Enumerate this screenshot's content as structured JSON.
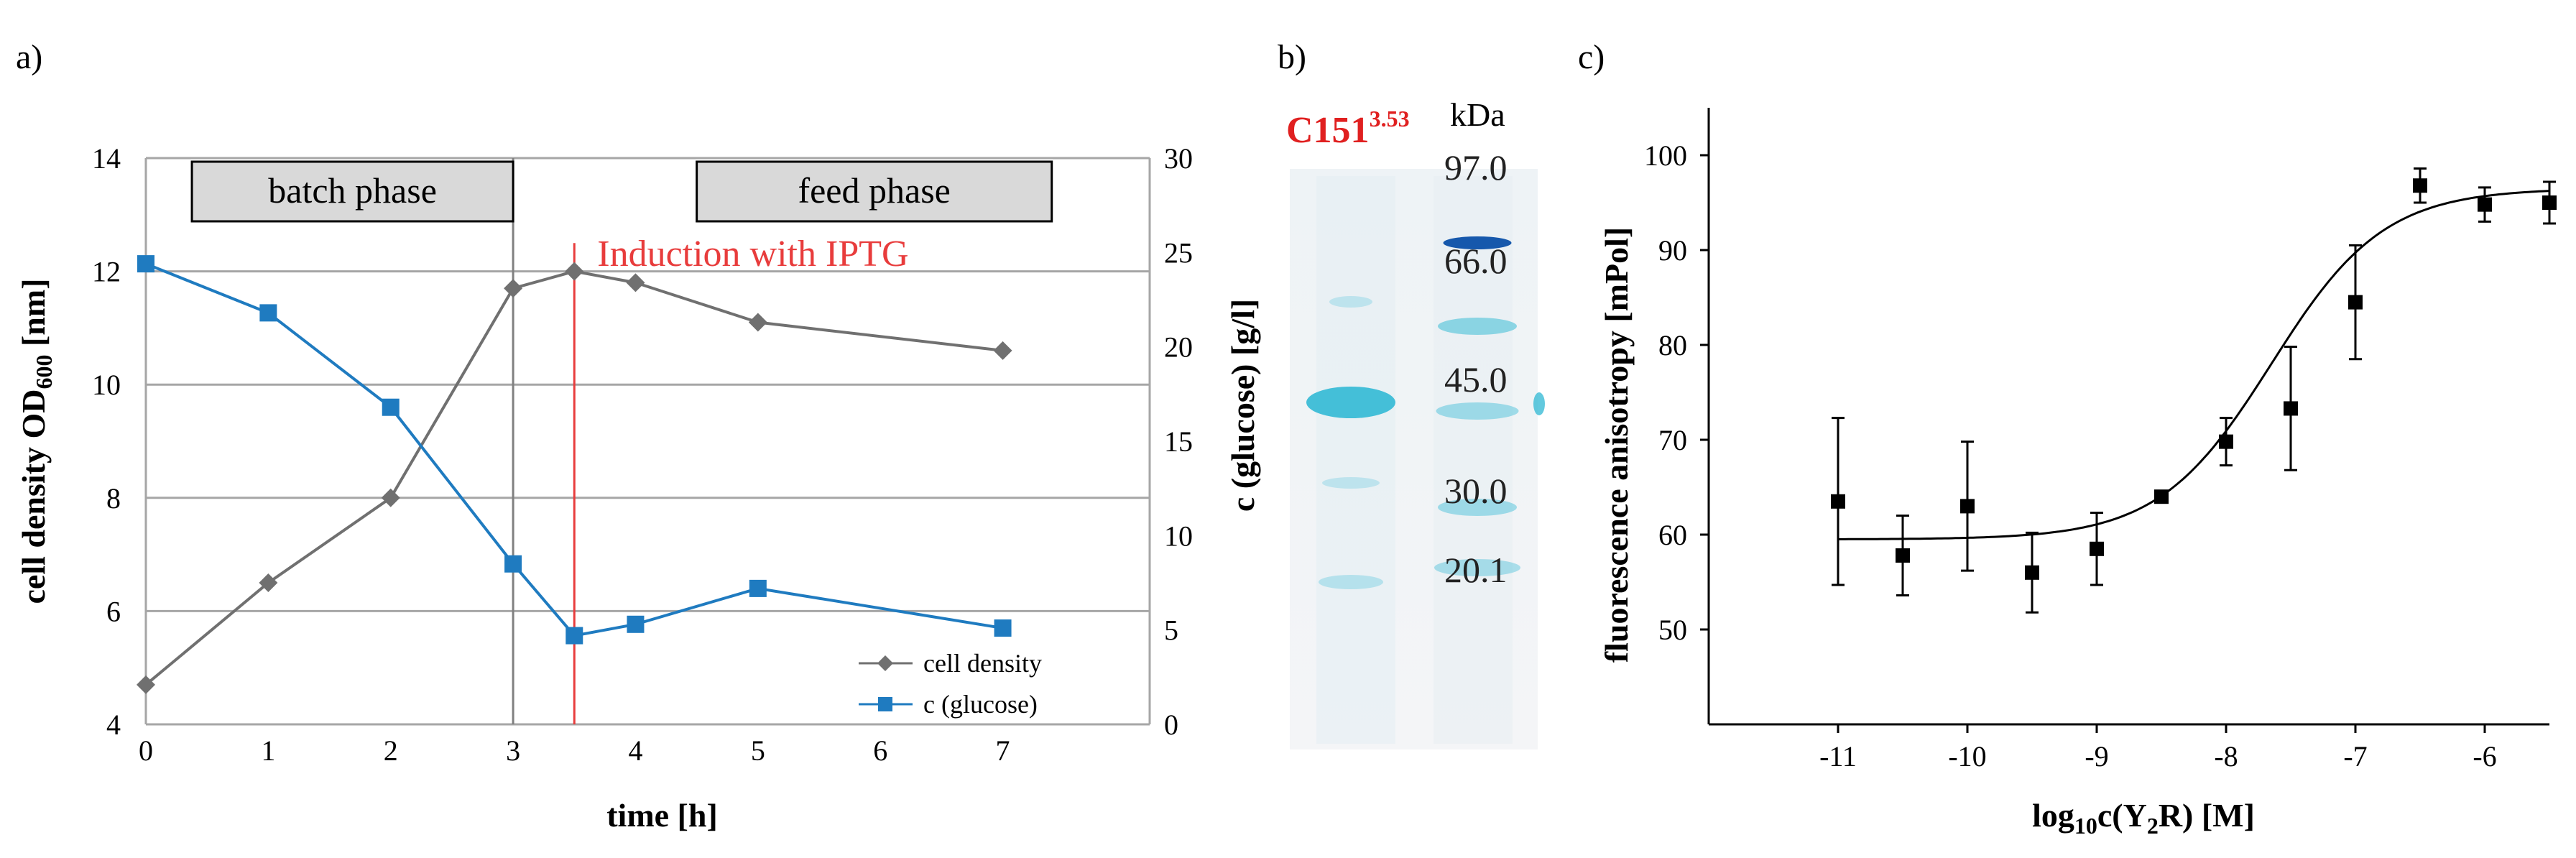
{
  "panel_labels": {
    "a": "a)",
    "b": "b)",
    "c": "c)"
  },
  "colors": {
    "cell_density": "#707070",
    "glucose": "#1f7bc0",
    "induction": "#e83c3c",
    "grid": "#a6a6a6",
    "box_fill": "#d9d9d9",
    "gel_band": "#3bbcd6",
    "gel_band_dark": "#0b4fa8",
    "red_label": "#e02020"
  },
  "chart_data": [
    {
      "id": "a",
      "type": "line",
      "title": "",
      "xlabel": "time [h]",
      "ylabel_left": "cell density OD",
      "ylabel_left_sub": "600",
      "ylabel_left_unit": " [nm]",
      "ylabel_right": "c (glucose) [g/l]",
      "xlim": [
        0,
        8.2
      ],
      "x_ticks": [
        0,
        1,
        2,
        3,
        4,
        5,
        6,
        7
      ],
      "y_left_lim": [
        4,
        14
      ],
      "y_left_ticks": [
        4,
        6,
        8,
        10,
        12,
        14
      ],
      "y_right_lim": [
        0,
        30
      ],
      "y_right_ticks": [
        0,
        5,
        10,
        15,
        20,
        25,
        30
      ],
      "grid": "horizontal",
      "legend_position": "bottom-right",
      "series": [
        {
          "name": "cell density",
          "axis": "left",
          "marker": "diamond",
          "x": [
            0,
            1,
            2,
            3,
            3.5,
            4,
            5,
            7
          ],
          "values": [
            4.7,
            6.5,
            8.0,
            11.7,
            12.0,
            11.8,
            11.1,
            10.6
          ]
        },
        {
          "name": "c (glucose)",
          "axis": "right",
          "marker": "square",
          "x": [
            0,
            1,
            2,
            3,
            3.5,
            4,
            5,
            7
          ],
          "values": [
            24.4,
            21.8,
            16.8,
            8.5,
            4.7,
            5.3,
            7.2,
            5.1
          ]
        }
      ],
      "phase_boxes": [
        {
          "label": "batch phase",
          "x_start": 0.2,
          "x_end": 3.0
        },
        {
          "label": "feed phase",
          "x_start": 4.5,
          "x_end": 7.4
        }
      ],
      "phase_divider_x": 3.0,
      "annotation": {
        "label": "Induction with IPTG",
        "x": 3.5,
        "y_top": 12.5
      }
    },
    {
      "id": "c",
      "type": "scatter",
      "title": "",
      "xlabel_prefix": "log",
      "xlabel_sub": "10",
      "xlabel_mid": "c(Y",
      "xlabel_sub2": "2",
      "xlabel_suffix": "R) [M]",
      "ylabel": "fluorescence anisotropy [mPol]",
      "xlim": [
        -12,
        -5.5
      ],
      "x_ticks": [
        -11,
        -10,
        -9,
        -8,
        -7,
        -6
      ],
      "ylim": [
        40,
        105
      ],
      "y_ticks": [
        50,
        60,
        70,
        80,
        90,
        100
      ],
      "grid": "none",
      "legend_position": "none",
      "series": [
        {
          "name": "data",
          "marker": "square",
          "x": [
            -11,
            -10.5,
            -10,
            -9.5,
            -9,
            -8.5,
            -8,
            -7.5,
            -7,
            -6.5,
            -6,
            -5.5
          ],
          "values": [
            63.5,
            57.8,
            63.0,
            56.0,
            58.5,
            64.0,
            69.8,
            73.3,
            84.5,
            96.8,
            94.8,
            95.0
          ],
          "errors": [
            8.8,
            4.2,
            6.8,
            4.2,
            3.8,
            0.4,
            2.5,
            6.5,
            6.0,
            1.8,
            1.8,
            2.2
          ]
        }
      ],
      "fit": {
        "type": "sigmoid",
        "bottom": 59.5,
        "top": 96.5,
        "log_ec50": -7.65,
        "hill": 1.0
      }
    }
  ],
  "gel": {
    "sample_label": "C151",
    "sample_superscript": "3.53",
    "unit_label": "kDa",
    "markers": [
      "97.0",
      "66.0",
      "45.0",
      "30.0",
      "20.1"
    ]
  }
}
